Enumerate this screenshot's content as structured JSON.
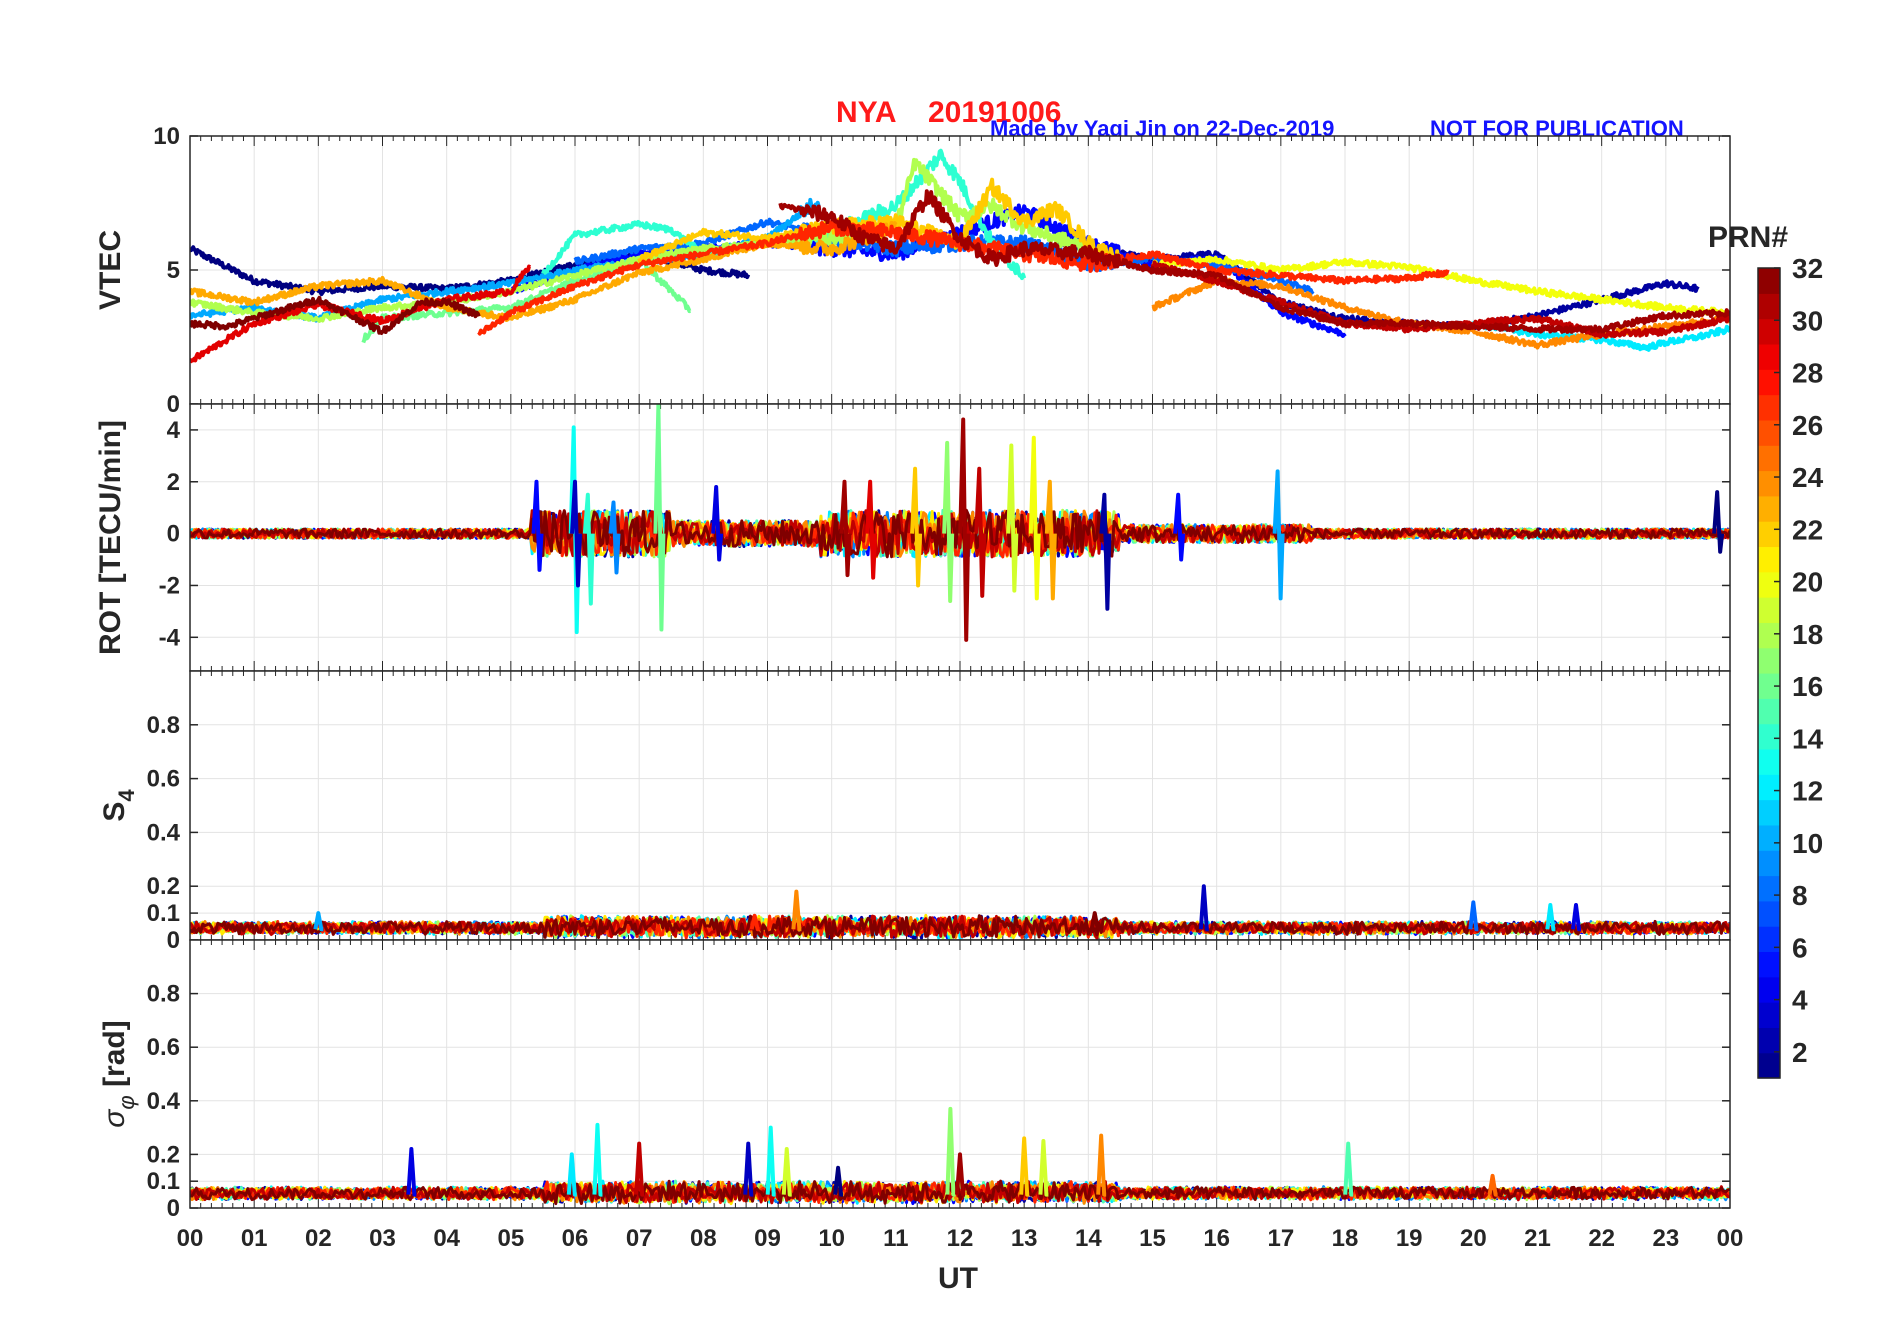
{
  "colors": {
    "title_red": "#ff1a1a",
    "credit_blue": "#1414ff",
    "axis": "#262626",
    "grid": "#e3e3e3"
  },
  "header": {
    "station": "NYA",
    "date": "20191006",
    "credit": "Made by Yaqi Jin on 22-Dec-2019",
    "notice": "NOT FOR PUBLICATION"
  },
  "chart_data": {
    "type": "line",
    "title": "NYA   20191006",
    "xlabel": "UT",
    "xlim": [
      0,
      24
    ],
    "x_ticks": [
      "00",
      "01",
      "02",
      "03",
      "04",
      "05",
      "06",
      "07",
      "08",
      "09",
      "10",
      "11",
      "12",
      "13",
      "14",
      "15",
      "16",
      "17",
      "18",
      "19",
      "20",
      "21",
      "22",
      "23",
      "00"
    ],
    "colorbar": {
      "title": "PRN#",
      "range": [
        1,
        32
      ],
      "ticks": [
        "2",
        "4",
        "6",
        "8",
        "10",
        "12",
        "14",
        "16",
        "18",
        "20",
        "22",
        "24",
        "26",
        "28",
        "30",
        "32"
      ],
      "tick_values": [
        2,
        4,
        6,
        8,
        10,
        12,
        14,
        16,
        18,
        20,
        22,
        24,
        26,
        28,
        30,
        32
      ]
    },
    "panels": [
      {
        "id": "vtec",
        "ylabel": "VTEC",
        "ylim": [
          0,
          10
        ],
        "y_tick_values": [
          0,
          5,
          10
        ],
        "y_tick_labels": [
          "0",
          "5",
          "10"
        ],
        "series": [
          {
            "prn": 1,
            "x": [
              0,
              1,
              2,
              3,
              4,
              5,
              6,
              7,
              8,
              8.7
            ],
            "y": [
              5.8,
              4.6,
              4.2,
              4.4,
              4.3,
              4.6,
              5.2,
              5.6,
              5.0,
              4.8
            ]
          },
          {
            "prn": 2,
            "x": [
              13.5,
              14,
              15,
              16,
              17,
              18,
              19,
              20,
              21,
              22,
              23,
              23.5
            ],
            "y": [
              6.2,
              5.8,
              5.4,
              5.6,
              3.8,
              3.2,
              3.0,
              2.9,
              3.3,
              3.9,
              4.5,
              4.3
            ]
          },
          {
            "prn": 5,
            "x": [
              5,
              6,
              7,
              8,
              9,
              10,
              11,
              12,
              13,
              14,
              15,
              16,
              17,
              18
            ],
            "y": [
              4.2,
              5.0,
              5.6,
              5.8,
              6.0,
              5.8,
              5.6,
              6.4,
              7.2,
              6.0,
              5.2,
              5.5,
              3.4,
              2.6
            ]
          },
          {
            "prn": 8,
            "x": [
              6,
              7,
              8,
              9,
              10,
              11,
              12,
              13,
              14,
              15,
              16,
              17,
              17.5
            ],
            "y": [
              5.3,
              5.8,
              6.0,
              6.8,
              6.2,
              5.8,
              6.0,
              6.0,
              5.2,
              5.4,
              5.2,
              4.6,
              4.2
            ]
          },
          {
            "prn": 10,
            "x": [
              0,
              1,
              2,
              3,
              4,
              5,
              6,
              7,
              8,
              9,
              9.8
            ],
            "y": [
              3.3,
              3.6,
              3.2,
              3.9,
              4.2,
              4.5,
              5.0,
              5.3,
              5.6,
              6.2,
              7.6
            ]
          },
          {
            "prn": 12,
            "x": [
              20,
              21,
              22,
              22.7,
              23,
              23.5,
              24
            ],
            "y": [
              3.0,
              2.6,
              2.4,
              2.1,
              2.3,
              2.5,
              2.8
            ]
          },
          {
            "prn": 14,
            "x": [
              5.5,
              6,
              6.5,
              7,
              7.5,
              8,
              9,
              10,
              11,
              11.7,
              12,
              12.5,
              13
            ],
            "y": [
              4.8,
              6.3,
              6.5,
              6.7,
              6.5,
              5.6,
              6.0,
              6.4,
              7.4,
              9.3,
              8.3,
              6.0,
              4.8
            ]
          },
          {
            "prn": 16,
            "x": [
              2.7,
              3,
              4,
              5,
              6,
              7,
              7.8
            ],
            "y": [
              2.4,
              3.2,
              3.4,
              3.6,
              4.6,
              5.4,
              3.5
            ]
          },
          {
            "prn": 18,
            "x": [
              0,
              1,
              2,
              3,
              4,
              5,
              6,
              7,
              8,
              9,
              10,
              11,
              11.3,
              12,
              12.5,
              13,
              14
            ],
            "y": [
              3.8,
              3.4,
              3.2,
              3.6,
              3.8,
              4.2,
              4.8,
              5.4,
              5.8,
              6.0,
              6.2,
              6.6,
              9.0,
              7.0,
              7.4,
              6.6,
              5.8
            ]
          },
          {
            "prn": 20,
            "x": [
              15,
              16,
              17,
              18,
              19,
              20,
              21,
              22,
              23,
              24
            ],
            "y": [
              5.2,
              5.4,
              5.0,
              5.3,
              5.1,
              4.6,
              4.2,
              3.9,
              3.6,
              3.4
            ]
          },
          {
            "prn": 22,
            "x": [
              7,
              8,
              9,
              10,
              11,
              12,
              12.5,
              13,
              13.5,
              14,
              14.5
            ],
            "y": [
              5.4,
              6.4,
              6.2,
              6.6,
              6.8,
              6.0,
              8.1,
              6.8,
              7.3,
              6.0,
              5.4
            ]
          },
          {
            "prn": 23,
            "x": [
              0,
              1,
              2,
              3,
              4,
              5,
              6,
              7,
              8,
              9,
              10,
              11
            ],
            "y": [
              4.2,
              3.8,
              4.4,
              4.6,
              3.6,
              3.2,
              3.9,
              4.9,
              5.4,
              6.0,
              5.8,
              6.6
            ]
          },
          {
            "prn": 24,
            "x": [
              15,
              16,
              17,
              18,
              19,
              20,
              21,
              22,
              23,
              24
            ],
            "y": [
              3.6,
              4.6,
              4.4,
              3.6,
              3.0,
              2.7,
              2.2,
              2.6,
              2.9,
              3.2
            ]
          },
          {
            "prn": 27,
            "x": [
              4.5,
              5,
              6,
              7,
              8,
              9,
              10,
              11,
              12,
              13,
              14,
              15,
              16,
              17,
              18,
              19,
              19.6
            ],
            "y": [
              2.6,
              3.4,
              4.4,
              5.2,
              5.6,
              6.0,
              6.6,
              6.4,
              6.0,
              5.6,
              5.2,
              5.6,
              5.0,
              4.8,
              4.6,
              4.7,
              4.9
            ]
          },
          {
            "prn": 29,
            "x": [
              0,
              1,
              2,
              3,
              4,
              5,
              5.3
            ],
            "y": [
              1.6,
              3.0,
              3.7,
              3.1,
              3.9,
              4.2,
              5.2
            ]
          },
          {
            "prn": 30,
            "x": [
              15,
              16,
              17,
              18,
              19,
              20,
              21,
              22,
              23,
              24
            ],
            "y": [
              5.2,
              4.6,
              3.8,
              3.0,
              2.8,
              3.0,
              3.2,
              2.6,
              2.7,
              3.2
            ]
          },
          {
            "prn": 32,
            "x": [
              0,
              0.6,
              1,
              2,
              3,
              3.6,
              4,
              4.5
            ],
            "y": [
              3.0,
              2.9,
              3.2,
              3.9,
              2.7,
              3.8,
              3.8,
              3.3
            ]
          },
          {
            "prn": 31,
            "x": [
              9.2,
              10,
              10.5,
              11,
              11.5,
              12,
              12.5,
              13,
              14,
              15,
              16,
              17,
              18,
              19,
              20,
              21,
              22,
              23,
              24
            ],
            "y": [
              7.4,
              7.0,
              6.2,
              5.8,
              7.8,
              6.2,
              5.4,
              5.8,
              5.6,
              5.0,
              4.8,
              3.6,
              3.0,
              3.0,
              2.9,
              2.8,
              2.8,
              3.3,
              3.4
            ]
          }
        ]
      },
      {
        "id": "rot",
        "ylabel": "ROT [TECU/min]",
        "ylim": [
          -5.3,
          5
        ],
        "y_tick_values": [
          -4,
          -2,
          0,
          2,
          4
        ],
        "y_tick_labels": [
          "-4",
          "-2",
          "0",
          "2",
          "4"
        ],
        "baseline": 0,
        "spikes": [
          {
            "prn": 13,
            "x": 5.98,
            "up": 4.1,
            "down": -3.8
          },
          {
            "prn": 16,
            "x": 7.3,
            "up": 5.0,
            "down": -3.7
          },
          {
            "prn": 5,
            "x": 5.4,
            "up": 2.0,
            "down": -1.4
          },
          {
            "prn": 3,
            "x": 6.0,
            "up": 2.0,
            "down": -2.0
          },
          {
            "prn": 14,
            "x": 6.2,
            "up": 1.5,
            "down": -2.7
          },
          {
            "prn": 9,
            "x": 6.6,
            "up": 1.2,
            "down": -1.5
          },
          {
            "prn": 4,
            "x": 8.2,
            "up": 1.8,
            "down": -1.0
          },
          {
            "prn": 31,
            "x": 10.2,
            "up": 2.0,
            "down": -1.6
          },
          {
            "prn": 29,
            "x": 10.6,
            "up": 2.0,
            "down": -1.7
          },
          {
            "prn": 22,
            "x": 11.3,
            "up": 2.5,
            "down": -2.0
          },
          {
            "prn": 17,
            "x": 11.8,
            "up": 3.5,
            "down": -2.6
          },
          {
            "prn": 31,
            "x": 12.05,
            "up": 4.4,
            "down": -4.1
          },
          {
            "prn": 30,
            "x": 12.3,
            "up": 2.5,
            "down": -2.4
          },
          {
            "prn": 19,
            "x": 12.8,
            "up": 3.4,
            "down": -2.2
          },
          {
            "prn": 20,
            "x": 13.15,
            "up": 3.7,
            "down": -2.5
          },
          {
            "prn": 23,
            "x": 13.4,
            "up": 2.0,
            "down": -2.5
          },
          {
            "prn": 2,
            "x": 14.25,
            "up": 1.5,
            "down": -2.9
          },
          {
            "prn": 10,
            "x": 16.95,
            "up": 2.4,
            "down": -2.5
          },
          {
            "prn": 5,
            "x": 15.4,
            "up": 1.5,
            "down": -1.0
          },
          {
            "prn": 1,
            "x": 23.8,
            "up": 1.6,
            "down": -0.7
          }
        ]
      },
      {
        "id": "s4",
        "ylabel": "S4",
        "ylim": [
          0,
          1
        ],
        "y_tick_values": [
          0,
          0.1,
          0.2,
          0.4,
          0.6,
          0.8
        ],
        "y_tick_labels": [
          "0",
          "0.1",
          "0.2",
          "0.4",
          "0.6",
          "0.8"
        ],
        "baseline": 0.04,
        "spikes": [
          {
            "prn": 24,
            "x": 9.45,
            "up": 0.18
          },
          {
            "prn": 3,
            "x": 15.8,
            "up": 0.2
          },
          {
            "prn": 8,
            "x": 20.0,
            "up": 0.14
          },
          {
            "prn": 4,
            "x": 21.6,
            "up": 0.13
          },
          {
            "prn": 12,
            "x": 21.2,
            "up": 0.13
          },
          {
            "prn": 10,
            "x": 2.0,
            "up": 0.1
          },
          {
            "prn": 27,
            "x": 8.8,
            "up": 0.09
          },
          {
            "prn": 32,
            "x": 14.1,
            "up": 0.1
          }
        ]
      },
      {
        "id": "sigma_phi",
        "ylabel": "σφ [rad]",
        "ylim": [
          0,
          1
        ],
        "y_tick_values": [
          0,
          0.1,
          0.2,
          0.4,
          0.6,
          0.8
        ],
        "y_tick_labels": [
          "0",
          "0.1",
          "0.2",
          "0.4",
          "0.6",
          "0.8"
        ],
        "baseline": 0.05,
        "spikes": [
          {
            "prn": 4,
            "x": 3.45,
            "up": 0.22
          },
          {
            "prn": 13,
            "x": 6.35,
            "up": 0.31
          },
          {
            "prn": 12,
            "x": 5.95,
            "up": 0.2
          },
          {
            "prn": 30,
            "x": 7.0,
            "up": 0.24
          },
          {
            "prn": 3,
            "x": 8.7,
            "up": 0.24
          },
          {
            "prn": 13,
            "x": 9.05,
            "up": 0.3
          },
          {
            "prn": 19,
            "x": 9.3,
            "up": 0.22
          },
          {
            "prn": 17,
            "x": 11.85,
            "up": 0.37
          },
          {
            "prn": 31,
            "x": 12.0,
            "up": 0.2
          },
          {
            "prn": 22,
            "x": 13.0,
            "up": 0.26
          },
          {
            "prn": 19,
            "x": 13.3,
            "up": 0.25
          },
          {
            "prn": 24,
            "x": 14.2,
            "up": 0.27
          },
          {
            "prn": 15,
            "x": 18.05,
            "up": 0.24
          },
          {
            "prn": 1,
            "x": 10.1,
            "up": 0.15
          },
          {
            "prn": 25,
            "x": 20.3,
            "up": 0.12
          }
        ]
      }
    ]
  }
}
